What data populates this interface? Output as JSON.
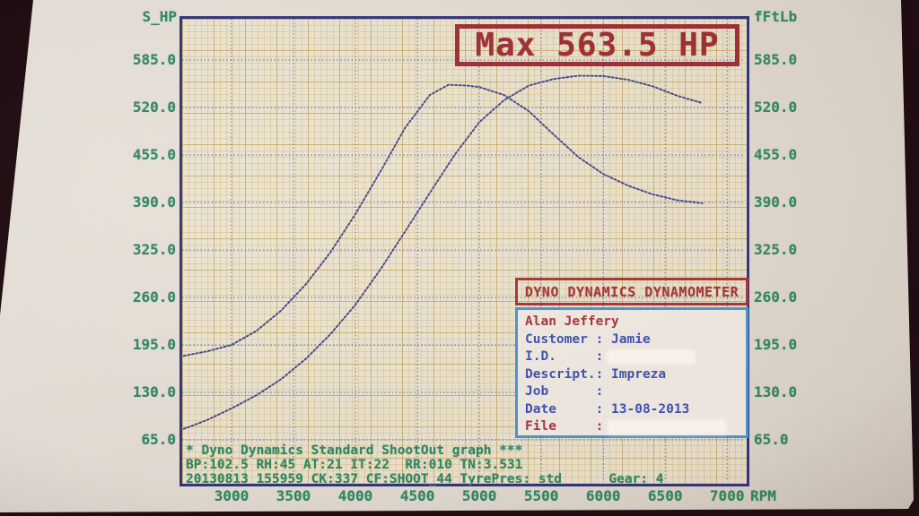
{
  "colors": {
    "paper": "#ded7ce",
    "surround": "#1f0c11",
    "green_print": "#2d8760",
    "navy_frame": "#32357c",
    "curve_navy": "#383b82",
    "red_print": "#9d2d32",
    "blue_print": "#3e50ad",
    "panel_border_blue": "#4b92c8"
  },
  "max_box": {
    "label": "Max 563.5 HP"
  },
  "info_panel": {
    "header": "DYNO DYNAMICS DYNAMOMETER",
    "rows": [
      {
        "text": "Alan Jeffery",
        "color": "red",
        "redact_width": 0
      },
      {
        "text": "Customer : Jamie",
        "color": "blue",
        "redact_width": 0
      },
      {
        "text": "I.D.     :",
        "color": "blue",
        "redact_width": 95
      },
      {
        "text": "Descript.: Impreza",
        "color": "blue",
        "redact_width": 0
      },
      {
        "text": "Job      :",
        "color": "blue",
        "redact_width": 0
      },
      {
        "text": "Date     : 13-08-2013",
        "color": "blue",
        "redact_width": 0
      },
      {
        "text": "File     :",
        "color": "red",
        "redact_width": 130
      }
    ]
  },
  "footer": {
    "line1": "* Dyno Dynamics Standard ShootOut graph ***",
    "line2": "BP:102.5 RH:45 AT:21 IT:22  RR:010 TN:3.531",
    "line3": "20130813 155959 CK:337 CF:SHOOT_44 TyrePres: std      Gear: 4"
  },
  "chart_data": {
    "type": "line",
    "title": "Dyno Dynamics Standard ShootOut graph",
    "annotation": "Max 563.5 HP",
    "max_power_hp": 563.5,
    "ylabel_left": "S_HP",
    "ylabel_right": "fFtLb",
    "xlabel_unit": "RPM",
    "xlim": [
      2580,
      7165
    ],
    "ylim": [
      0,
      650
    ],
    "grid": true,
    "x_ticks": {
      "values": [
        3000,
        3500,
        4000,
        4500,
        5000,
        5500,
        6000,
        6500,
        7000
      ],
      "labels": [
        "3000",
        "3500",
        "4000",
        "4500",
        "5000",
        "5500",
        "6000",
        "6500",
        "7000"
      ],
      "unit": "RPM"
    },
    "y_ticks": {
      "values": [
        585,
        520,
        455,
        390,
        325,
        260,
        195,
        130,
        65
      ],
      "labels": [
        "585.0",
        "520.0",
        "455.0",
        "390.0",
        "325.0",
        "260.0",
        "195.0",
        "130.0",
        "65.0"
      ]
    },
    "series": [
      {
        "name": "power-shp",
        "style": "dotted-navy",
        "x": [
          2615,
          2800,
          3000,
          3200,
          3400,
          3600,
          3800,
          4000,
          4200,
          4400,
          4600,
          4800,
          5000,
          5200,
          5400,
          5600,
          5800,
          6000,
          6200,
          6400,
          6600,
          6800
        ],
        "y": [
          80,
          92,
          108,
          126,
          148,
          176,
          210,
          250,
          298,
          350,
          403,
          455,
          500,
          530,
          550,
          559,
          563.5,
          563,
          558,
          549,
          536,
          526
        ]
      },
      {
        "name": "torque-fftlb",
        "style": "dotted-navy",
        "x": [
          2615,
          2800,
          3000,
          3200,
          3400,
          3600,
          3800,
          4000,
          4200,
          4400,
          4600,
          4750,
          4900,
          5000,
          5200,
          5400,
          5600,
          5800,
          6000,
          6200,
          6400,
          6600,
          6800
        ],
        "y": [
          180,
          186,
          195,
          214,
          242,
          278,
          322,
          374,
          432,
          492,
          537,
          551,
          550,
          548,
          537,
          515,
          483,
          452,
          429,
          413,
          401,
          393,
          389
        ]
      }
    ]
  }
}
